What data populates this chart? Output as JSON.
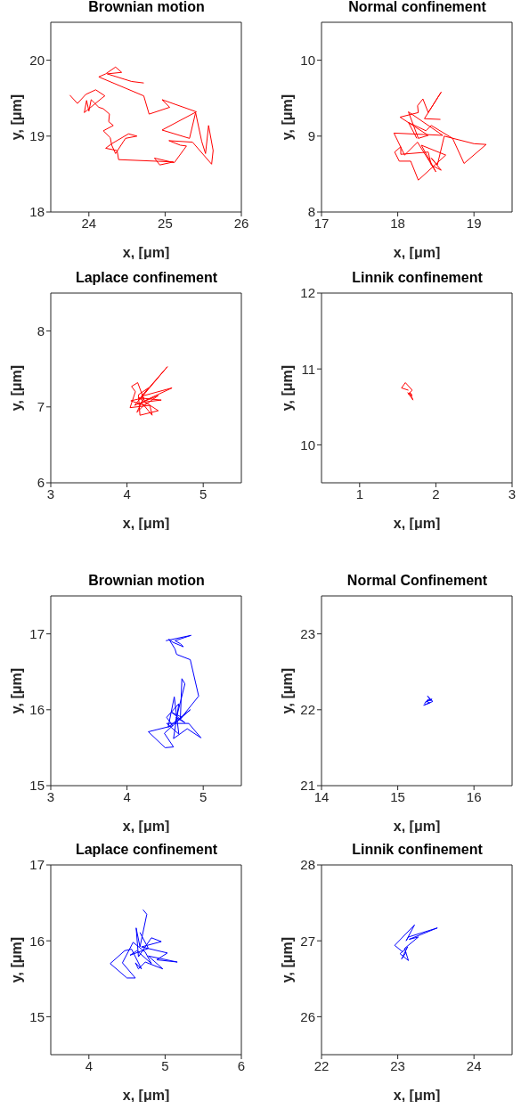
{
  "chart_data": [
    {
      "type": "line",
      "title": "Brownian motion",
      "xlabel": "x, [μm]",
      "ylabel": "y, [μm]",
      "xlim": [
        23.5,
        26
      ],
      "ylim": [
        18,
        20.5
      ],
      "xticks": [
        24,
        25,
        26
      ],
      "yticks": [
        18,
        19,
        20
      ],
      "x": [
        24.72,
        24.56,
        24.24,
        24.43,
        24.35,
        24.22,
        24.13,
        24.72,
        24.79,
        25.06,
        24.96,
        25.41,
        24.96,
        25.32,
        25.4,
        25.48,
        25.53,
        25.57,
        25.63,
        25.61,
        25.36,
        25.05,
        25.2,
        25.28,
        25.12,
        24.86,
        24.93,
        25.11,
        24.39,
        24.37,
        24.22,
        24.3,
        24.52,
        24.63,
        24.48,
        24.35,
        24.3,
        24.28,
        24.19,
        24.32,
        24.26,
        24.27,
        24.19,
        24.13,
        24.03,
        24.0,
        23.97,
        23.94,
        24.17,
        24.21,
        24.09,
        23.96,
        23.85,
        23.75
      ],
      "series": [
        {
          "color": "#ff0000",
          "values": [
            19.7,
            19.72,
            19.82,
            19.84,
            19.91,
            19.82,
            19.78,
            19.53,
            19.29,
            19.38,
            19.48,
            19.32,
            19.08,
            18.97,
            19.31,
            18.93,
            18.77,
            19.14,
            18.81,
            18.63,
            18.92,
            18.94,
            18.88,
            18.87,
            18.65,
            18.71,
            18.62,
            18.66,
            18.69,
            18.81,
            18.84,
            18.9,
            19.03,
            19.0,
            18.97,
            18.77,
            18.88,
            18.98,
            19.07,
            19.14,
            19.19,
            19.29,
            19.36,
            19.38,
            19.48,
            19.33,
            19.47,
            19.31,
            19.5,
            19.53,
            19.61,
            19.55,
            19.43,
            19.54
          ]
        }
      ]
    },
    {
      "type": "line",
      "title": "Normal confinement",
      "xlabel": "x, [μm]",
      "ylabel": "y, [μm]",
      "xlim": [
        17,
        19.5
      ],
      "ylim": [
        8,
        10.5
      ],
      "xticks": [
        17,
        18,
        19
      ],
      "yticks": [
        8,
        9,
        10
      ],
      "x": [
        18.56,
        18.35,
        18.57,
        18.4,
        18.33,
        18.26,
        18.27,
        18.03,
        18.4,
        18.27,
        18.14,
        18.59,
        17.95,
        18.09,
        18.26,
        18.5,
        18.31,
        18.63,
        18.27,
        18.17,
        18.02,
        17.96,
        18.04,
        18.04,
        18.4,
        18.44,
        18.57,
        18.44,
        18.52,
        18.61,
        19.0,
        19.16,
        18.87,
        18.72,
        18.44,
        18.37,
        18.14,
        18.25
      ],
      "series": [
        {
          "color": "#ff0000",
          "values": [
            9.22,
            9.23,
            9.58,
            9.31,
            9.49,
            9.4,
            9.31,
            9.25,
            9.01,
            8.97,
            9.32,
            9.01,
            9.04,
            8.75,
            8.92,
            8.53,
            8.88,
            8.75,
            8.42,
            8.67,
            8.67,
            8.79,
            8.86,
            8.76,
            8.79,
            8.62,
            8.55,
            8.71,
            8.62,
            9.0,
            8.9,
            8.89,
            8.64,
            8.97,
            9.14,
            9.07,
            9.18,
            8.97
          ]
        }
      ]
    },
    {
      "type": "line",
      "title": "Laplace confinement",
      "xlabel": "x, [μm]",
      "ylabel": "y, [μm]",
      "xlim": [
        3,
        5.5
      ],
      "ylim": [
        6,
        8.5
      ],
      "xticks": [
        3,
        4,
        5
      ],
      "yticks": [
        6,
        7,
        8
      ],
      "x": [
        4.17,
        4.53,
        4.19,
        4.59,
        4.23,
        4.14,
        4.06,
        4.11,
        4.04,
        4.3,
        4.33,
        4.19,
        4.45,
        4.15,
        4.41,
        4.17,
        4.15,
        4.28,
        4.1,
        4.41,
        4.23,
        4.05,
        4.22,
        4.13,
        4.25
      ],
      "series": [
        {
          "color": "#ff0000",
          "values": [
            7.1,
            7.53,
            7.14,
            7.25,
            7.08,
            7.32,
            7.27,
            7.2,
            6.99,
            7.02,
            6.89,
            7.06,
            7.09,
            7.12,
            6.95,
            6.89,
            7.16,
            7.25,
            7.02,
            7.15,
            7.02,
            7.08,
            7.12,
            6.93,
            7.05
          ]
        }
      ]
    },
    {
      "type": "line",
      "title": "Linnik confinement",
      "xlabel": "x, [μm]",
      "ylabel": "y, [μm]",
      "xlim": [
        0.5,
        3
      ],
      "ylim": [
        9.5,
        12
      ],
      "xticks": [
        1,
        2,
        3
      ],
      "yticks": [
        10,
        11,
        12
      ],
      "x": [
        1.64,
        1.55,
        1.6,
        1.69,
        1.64,
        1.69,
        1.66,
        1.7,
        1.68,
        1.63
      ],
      "series": [
        {
          "color": "#ff0000",
          "values": [
            10.72,
            10.75,
            10.82,
            10.72,
            10.67,
            10.65,
            10.69,
            10.59,
            10.62,
            10.69
          ]
        }
      ]
    },
    {
      "type": "line",
      "title": "Brownian motion",
      "xlabel": "x, [μm]",
      "ylabel": "y, [μm]",
      "xlim": [
        3,
        5.5
      ],
      "ylim": [
        15,
        17.5
      ],
      "xticks": [
        3,
        4,
        5
      ],
      "yticks": [
        15,
        16,
        17
      ],
      "x": [
        4.51,
        4.84,
        4.63,
        4.7,
        4.74,
        4.6,
        4.55,
        4.63,
        4.65,
        4.83,
        4.94,
        4.7,
        4.72,
        4.76,
        4.63,
        4.83,
        4.54,
        4.62,
        4.68,
        4.52,
        4.81,
        4.97,
        4.79,
        4.61,
        4.68,
        4.52,
        4.6,
        4.28,
        4.5,
        4.61,
        4.49,
        4.72,
        4.58,
        4.76,
        4.64
      ],
      "series": [
        {
          "color": "#0000ff",
          "values": [
            16.91,
            16.98,
            16.91,
            16.87,
            16.83,
            16.89,
            16.93,
            16.8,
            16.73,
            16.66,
            16.18,
            15.88,
            16.41,
            16.34,
            15.82,
            16.0,
            15.77,
            16.17,
            15.68,
            15.82,
            15.82,
            15.63,
            15.75,
            15.62,
            16.08,
            15.9,
            15.79,
            15.71,
            15.5,
            15.51,
            15.69,
            15.9,
            15.97,
            15.83,
            15.9
          ]
        }
      ]
    },
    {
      "type": "line",
      "title": "Normal Confinement",
      "xlabel": "x, [μm]",
      "ylabel": "y, [μm]",
      "xlim": [
        14,
        16.5
      ],
      "ylim": [
        21,
        23.5
      ],
      "xticks": [
        14,
        15,
        16
      ],
      "yticks": [
        21,
        22,
        23
      ],
      "x": [
        15.35,
        15.4,
        15.44,
        15.39,
        15.46,
        15.34,
        15.42,
        15.38,
        15.45,
        15.36
      ],
      "series": [
        {
          "color": "#0000ff",
          "values": [
            22.08,
            22.14,
            22.12,
            22.18,
            22.11,
            22.06,
            22.09,
            22.11,
            22.14,
            22.1
          ]
        }
      ]
    },
    {
      "type": "line",
      "title": "Laplace confinement",
      "xlabel": "x, [μm]",
      "ylabel": "y, [μm]",
      "xlim": [
        3.5,
        6
      ],
      "ylim": [
        14.5,
        17
      ],
      "xticks": [
        4,
        5,
        6
      ],
      "yticks": [
        15,
        16,
        17
      ],
      "x": [
        4.71,
        4.76,
        4.67,
        4.62,
        4.65,
        4.82,
        4.95,
        4.69,
        5.03,
        4.89,
        5.16,
        4.78,
        4.97,
        4.74,
        4.65,
        4.61,
        4.69,
        4.56,
        4.47,
        4.28,
        4.5,
        4.61,
        4.44,
        4.58,
        4.74,
        4.82,
        4.63,
        4.54,
        4.78,
        4.67
      ],
      "series": [
        {
          "color": "#0000ff",
          "values": [
            16.41,
            16.35,
            15.92,
            16.17,
            15.79,
            16.04,
            15.99,
            15.92,
            15.84,
            15.75,
            15.72,
            15.8,
            15.63,
            15.72,
            15.63,
            15.71,
            15.63,
            15.89,
            15.87,
            15.7,
            15.51,
            15.51,
            15.71,
            15.98,
            15.85,
            15.7,
            15.87,
            15.81,
            15.9,
            16.11
          ]
        }
      ]
    },
    {
      "type": "line",
      "title": "Linnik confinement",
      "xlabel": "x, [μm]",
      "ylabel": "y, [μm]",
      "xlim": [
        22,
        24.5
      ],
      "ylim": [
        25.5,
        28
      ],
      "xticks": [
        22,
        23,
        24
      ],
      "yticks": [
        26,
        27,
        28
      ],
      "x": [
        23.07,
        22.96,
        23.22,
        23.11,
        23.14,
        23.52,
        23.15,
        23.27,
        23.09,
        23.14,
        23.03,
        23.13,
        23.05,
        23.11
      ],
      "series": [
        {
          "color": "#0000ff",
          "values": [
            26.85,
            26.94,
            27.21,
            27.0,
            27.05,
            27.17,
            27.02,
            27.05,
            26.9,
            26.74,
            26.83,
            26.92,
            26.76,
            26.85
          ]
        }
      ]
    }
  ]
}
